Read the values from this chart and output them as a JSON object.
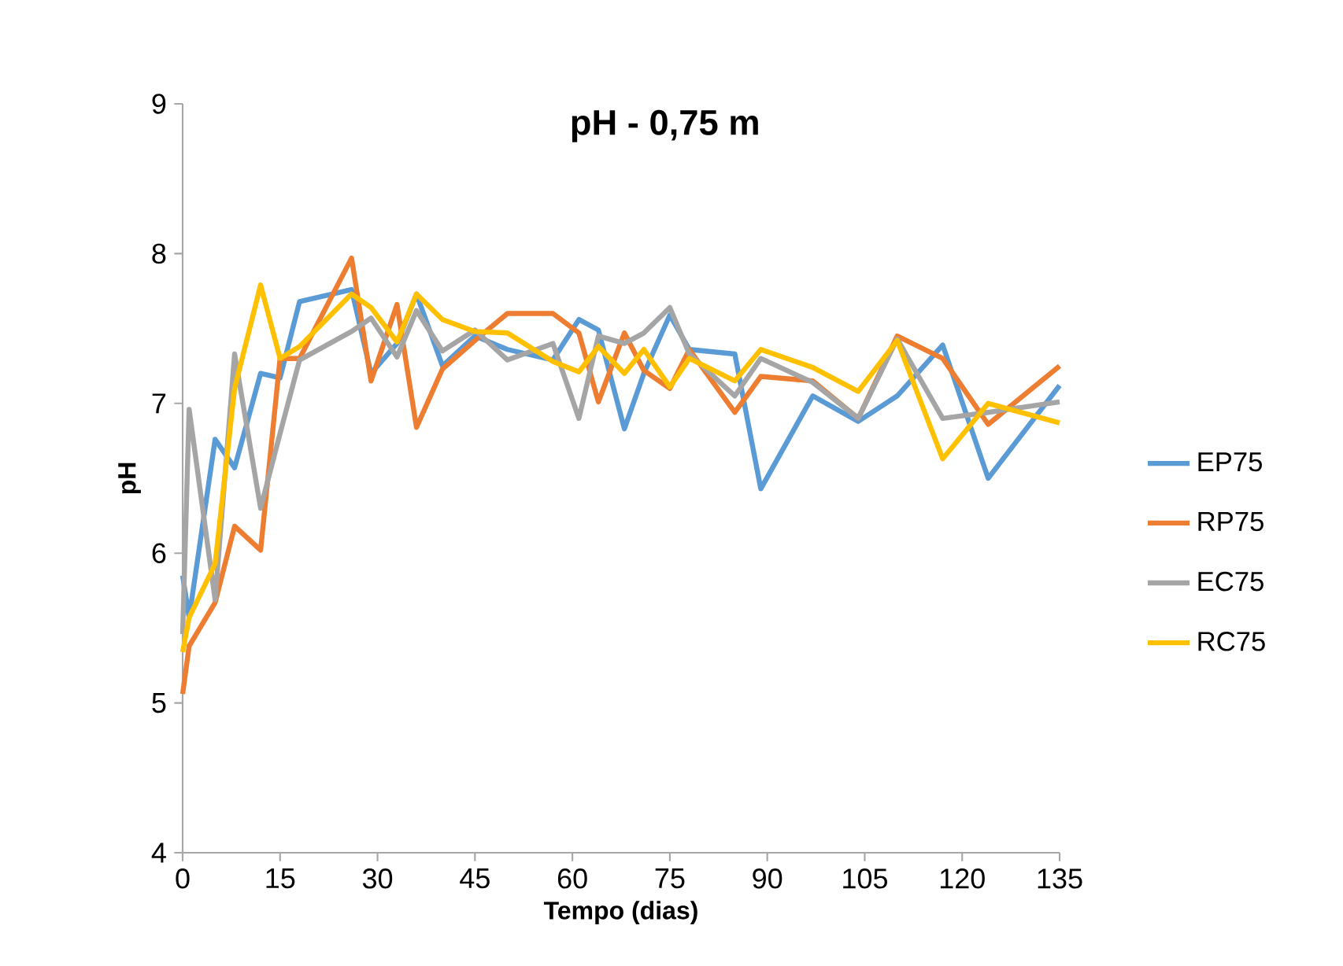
{
  "chart_data": {
    "type": "line",
    "title": "pH - 0,75 m",
    "xlabel": "Tempo (dias)",
    "ylabel": "pH",
    "x": [
      0,
      1,
      5,
      8,
      12,
      15,
      18,
      26,
      29,
      33,
      36,
      40,
      45,
      50,
      57,
      61,
      64,
      68,
      71,
      75,
      78,
      85,
      89,
      97,
      104,
      110,
      117,
      124,
      135
    ],
    "xlim": [
      0,
      135
    ],
    "ylim": [
      4,
      9
    ],
    "xticks": [
      0,
      15,
      30,
      45,
      60,
      75,
      90,
      105,
      120,
      135
    ],
    "yticks": [
      4,
      5,
      6,
      7,
      8,
      9
    ],
    "legend": "right",
    "series": [
      {
        "name": "EP75",
        "color": "#5b9bd5",
        "values": [
          5.85,
          5.57,
          6.76,
          6.57,
          7.2,
          7.17,
          7.68,
          7.76,
          7.2,
          7.4,
          7.73,
          7.25,
          7.45,
          7.36,
          7.29,
          7.56,
          7.49,
          6.83,
          7.2,
          7.59,
          7.36,
          7.33,
          6.43,
          7.05,
          6.88,
          7.05,
          7.39,
          6.5,
          7.12
        ]
      },
      {
        "name": "RP75",
        "color": "#ed7d31",
        "values": [
          5.06,
          5.38,
          5.67,
          6.18,
          6.02,
          7.3,
          7.3,
          7.97,
          7.15,
          7.66,
          6.84,
          7.23,
          7.42,
          7.6,
          7.6,
          7.47,
          7.01,
          7.47,
          7.22,
          7.1,
          7.36,
          6.94,
          7.18,
          7.15,
          6.9,
          7.45,
          7.3,
          6.86,
          7.25
        ]
      },
      {
        "name": "EC75",
        "color": "#a5a5a5",
        "values": [
          5.46,
          6.96,
          5.69,
          7.33,
          6.3,
          6.8,
          7.29,
          7.48,
          7.57,
          7.31,
          7.62,
          7.35,
          7.49,
          7.29,
          7.4,
          6.9,
          7.45,
          7.4,
          7.47,
          7.64,
          7.33,
          7.05,
          7.3,
          7.14,
          6.9,
          7.43,
          6.9,
          6.94,
          7.01
        ]
      },
      {
        "name": "RC75",
        "color": "#ffc000",
        "values": [
          5.34,
          5.57,
          5.93,
          7.1,
          7.79,
          7.3,
          7.38,
          7.73,
          7.64,
          7.41,
          7.73,
          7.56,
          7.48,
          7.47,
          7.28,
          7.21,
          7.38,
          7.2,
          7.36,
          7.11,
          7.3,
          7.15,
          7.36,
          7.24,
          7.08,
          7.42,
          6.63,
          7.0,
          6.87
        ]
      }
    ]
  }
}
